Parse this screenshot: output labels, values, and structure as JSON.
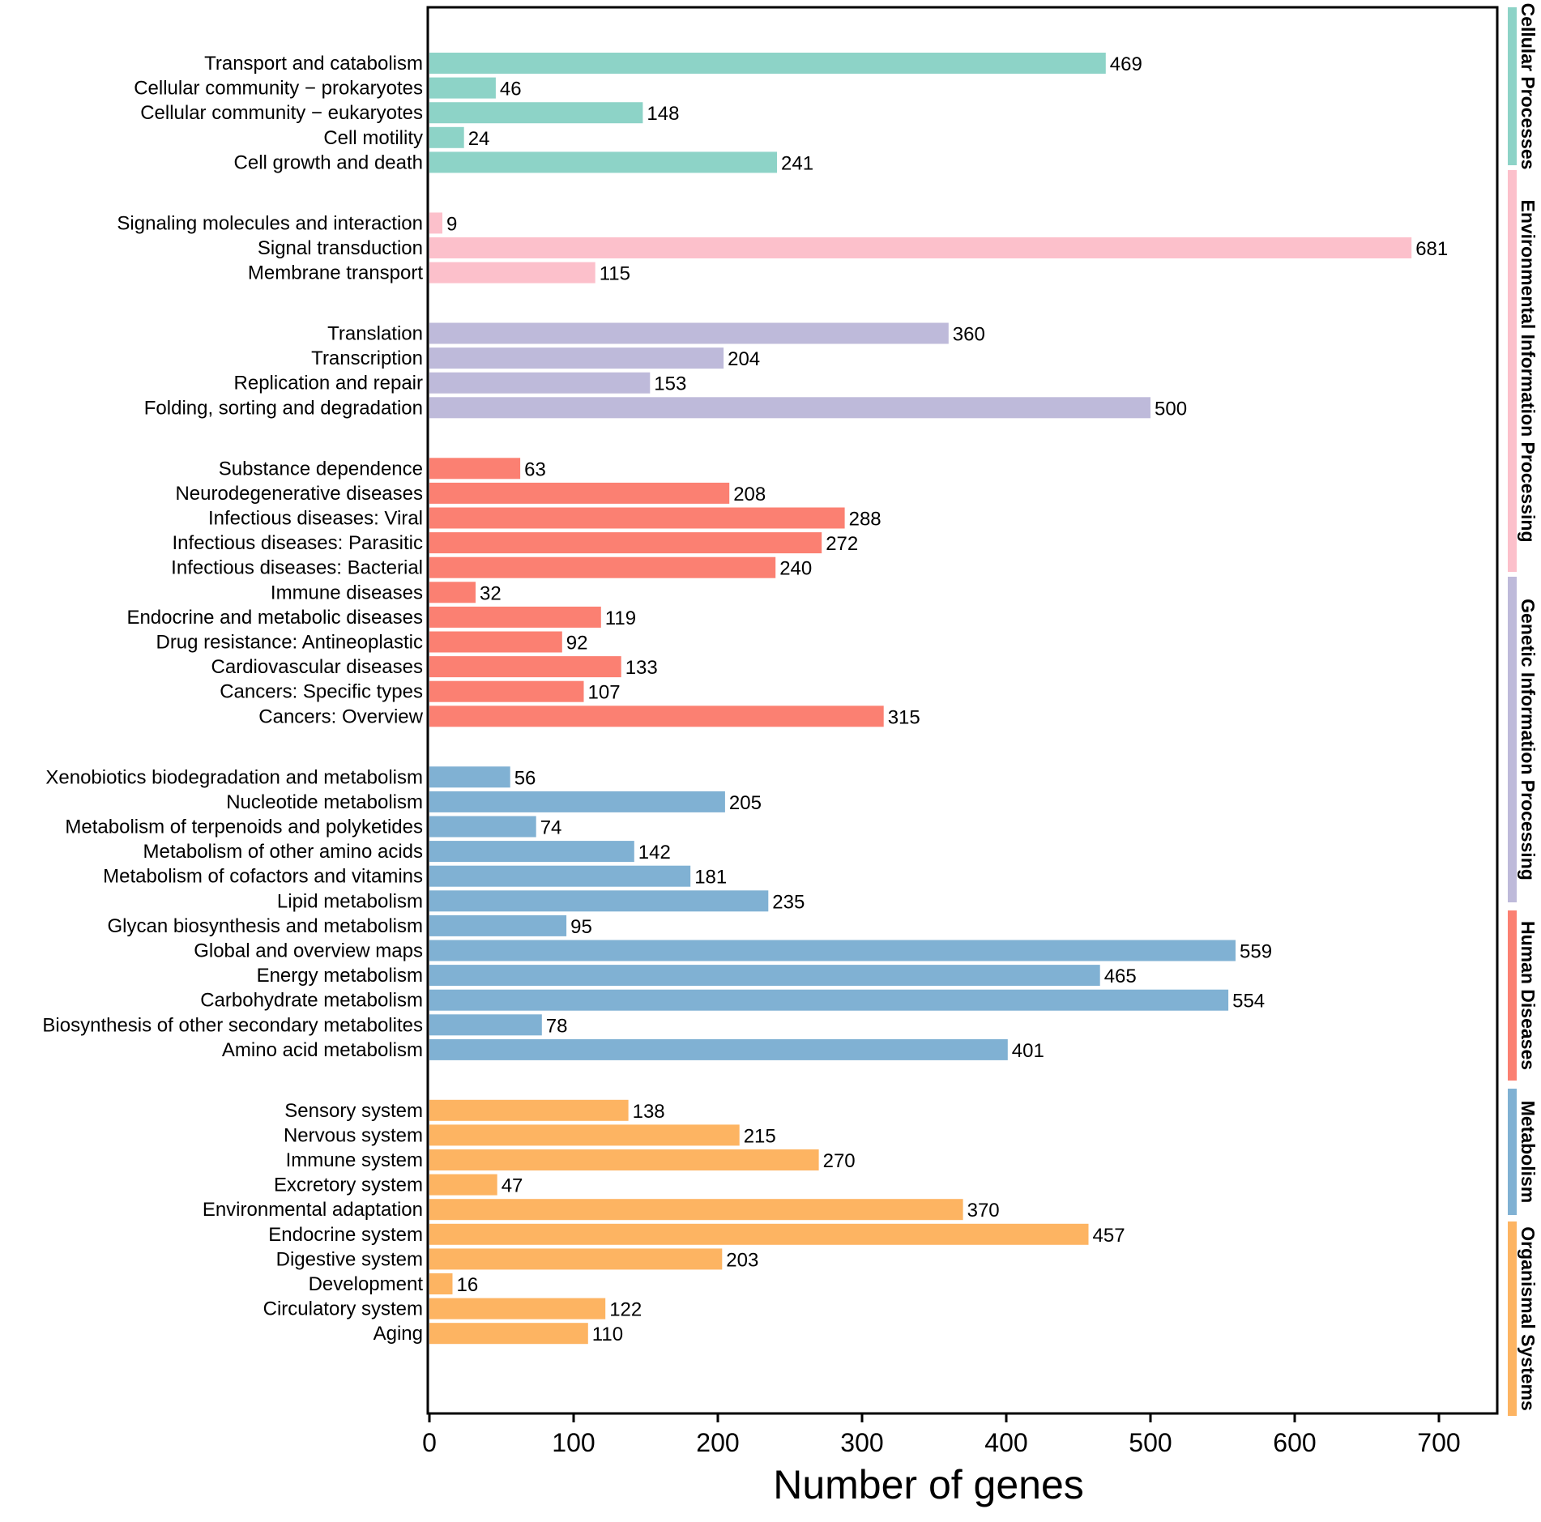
{
  "chart_data": {
    "type": "bar",
    "orientation": "horizontal",
    "xlabel": "Number of genes",
    "xlim": [
      0,
      740
    ],
    "xticks": [
      0,
      100,
      200,
      300,
      400,
      500,
      600,
      700
    ],
    "groups": [
      {
        "name": "Cellular Processes",
        "color": "#8dd3c7",
        "bars": [
          {
            "label": "Transport and catabolism",
            "value": 469
          },
          {
            "label": "Cellular community − prokaryotes",
            "value": 46
          },
          {
            "label": "Cellular community − eukaryotes",
            "value": 148
          },
          {
            "label": "Cell motility",
            "value": 24
          },
          {
            "label": "Cell growth and death",
            "value": 241
          }
        ]
      },
      {
        "name": "Environmental Information Processing",
        "color": "#fcc0cb",
        "bars": [
          {
            "label": "Signaling molecules and interaction",
            "value": 9
          },
          {
            "label": "Signal transduction",
            "value": 681
          },
          {
            "label": "Membrane transport",
            "value": 115
          }
        ]
      },
      {
        "name": "Genetic Information Processing",
        "color": "#bebada",
        "bars": [
          {
            "label": "Translation",
            "value": 360
          },
          {
            "label": "Transcription",
            "value": 204
          },
          {
            "label": "Replication and repair",
            "value": 153
          },
          {
            "label": "Folding, sorting and degradation",
            "value": 500
          }
        ]
      },
      {
        "name": "Human Diseases",
        "color": "#fb8072",
        "bars": [
          {
            "label": "Substance dependence",
            "value": 63
          },
          {
            "label": "Neurodegenerative diseases",
            "value": 208
          },
          {
            "label": "Infectious diseases: Viral",
            "value": 288
          },
          {
            "label": "Infectious diseases: Parasitic",
            "value": 272
          },
          {
            "label": "Infectious diseases: Bacterial",
            "value": 240
          },
          {
            "label": "Immune diseases",
            "value": 32
          },
          {
            "label": "Endocrine and metabolic diseases",
            "value": 119
          },
          {
            "label": "Drug resistance: Antineoplastic",
            "value": 92
          },
          {
            "label": "Cardiovascular diseases",
            "value": 133
          },
          {
            "label": "Cancers: Specific types",
            "value": 107
          },
          {
            "label": "Cancers: Overview",
            "value": 315
          }
        ]
      },
      {
        "name": "Metabolism",
        "color": "#80b1d3",
        "bars": [
          {
            "label": "Xenobiotics biodegradation and metabolism",
            "value": 56
          },
          {
            "label": "Nucleotide metabolism",
            "value": 205
          },
          {
            "label": "Metabolism of terpenoids and polyketides",
            "value": 74
          },
          {
            "label": "Metabolism of other amino acids",
            "value": 142
          },
          {
            "label": "Metabolism of cofactors and vitamins",
            "value": 181
          },
          {
            "label": "Lipid metabolism",
            "value": 235
          },
          {
            "label": "Glycan biosynthesis and metabolism",
            "value": 95
          },
          {
            "label": "Global and overview maps",
            "value": 559
          },
          {
            "label": "Energy metabolism",
            "value": 465
          },
          {
            "label": "Carbohydrate metabolism",
            "value": 554
          },
          {
            "label": "Biosynthesis of other secondary metabolites",
            "value": 78
          },
          {
            "label": "Amino acid metabolism",
            "value": 401
          }
        ]
      },
      {
        "name": "Organismal Systems",
        "color": "#fdb462",
        "bars": [
          {
            "label": "Sensory system",
            "value": 138
          },
          {
            "label": "Nervous system",
            "value": 215
          },
          {
            "label": "Immune system",
            "value": 270
          },
          {
            "label": "Excretory system",
            "value": 47
          },
          {
            "label": "Environmental adaptation",
            "value": 370
          },
          {
            "label": "Endocrine system",
            "value": 457
          },
          {
            "label": "Digestive system",
            "value": 203
          },
          {
            "label": "Development",
            "value": 16
          },
          {
            "label": "Circulatory system",
            "value": 122
          },
          {
            "label": "Aging",
            "value": 110
          }
        ]
      }
    ]
  }
}
